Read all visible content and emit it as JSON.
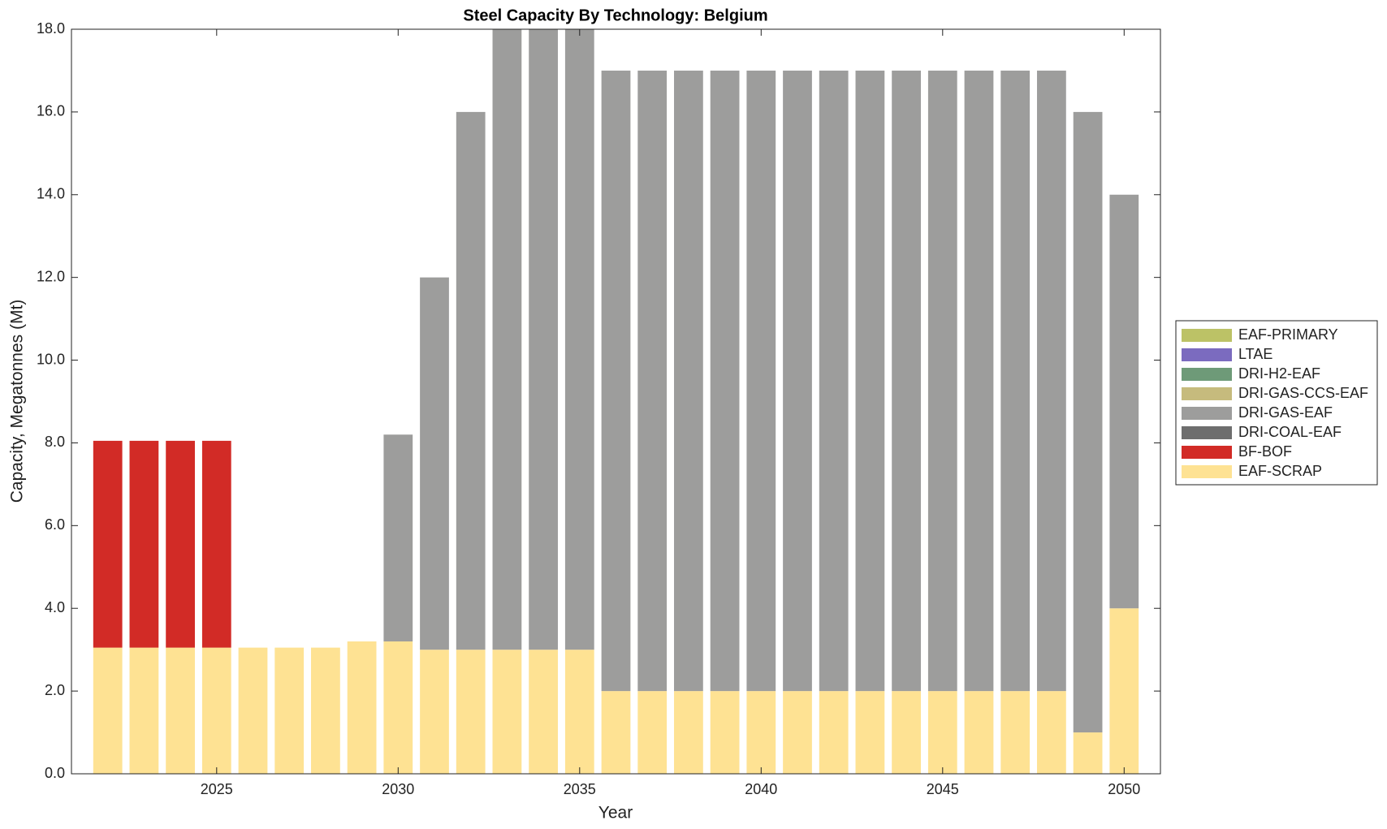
{
  "chart_data": {
    "type": "bar",
    "stacked": true,
    "title": "Steel Capacity By Technology: Belgium",
    "xlabel": "Year",
    "ylabel": "Capacity, Megatonnes (Mt)",
    "x": [
      2022,
      2023,
      2024,
      2025,
      2026,
      2027,
      2028,
      2029,
      2030,
      2031,
      2032,
      2033,
      2034,
      2035,
      2036,
      2037,
      2038,
      2039,
      2040,
      2041,
      2042,
      2043,
      2044,
      2045,
      2046,
      2047,
      2048,
      2049,
      2050
    ],
    "xlim": [
      2021,
      2051
    ],
    "xticks": [
      2025,
      2030,
      2035,
      2040,
      2045,
      2050
    ],
    "ylim": [
      0,
      18
    ],
    "yticks": [
      {
        "value": 0,
        "label": "0.0"
      },
      {
        "value": 2,
        "label": "2.0"
      },
      {
        "value": 4,
        "label": "4.0"
      },
      {
        "value": 6,
        "label": "6.0"
      },
      {
        "value": 8,
        "label": "8.0"
      },
      {
        "value": 10,
        "label": "10.0"
      },
      {
        "value": 12,
        "label": "12.0"
      },
      {
        "value": 14,
        "label": "14.0"
      },
      {
        "value": 16,
        "label": "16.0"
      },
      {
        "value": 18,
        "label": "18.0"
      }
    ],
    "legend": "right",
    "series": [
      {
        "name": "EAF-SCRAP",
        "color": "#fee293",
        "values": [
          3.05,
          3.05,
          3.05,
          3.05,
          3.05,
          3.05,
          3.05,
          3.2,
          3.2,
          3,
          3,
          3,
          3,
          3,
          2,
          2,
          2,
          2,
          2,
          2,
          2,
          2,
          2,
          2,
          2,
          2,
          2,
          1,
          4
        ]
      },
      {
        "name": "BF-BOF",
        "color": "#d22b26",
        "values": [
          5,
          5,
          5,
          5,
          0,
          0,
          0,
          0,
          0,
          0,
          0,
          0,
          0,
          0,
          0,
          0,
          0,
          0,
          0,
          0,
          0,
          0,
          0,
          0,
          0,
          0,
          0,
          0,
          0
        ]
      },
      {
        "name": "DRI-COAL-EAF",
        "color": "#6e6e6e",
        "values": [
          0,
          0,
          0,
          0,
          0,
          0,
          0,
          0,
          0,
          0,
          0,
          0,
          0,
          0,
          0,
          0,
          0,
          0,
          0,
          0,
          0,
          0,
          0,
          0,
          0,
          0,
          0,
          0,
          0
        ]
      },
      {
        "name": "DRI-GAS-EAF",
        "color": "#9d9d9c",
        "values": [
          0,
          0,
          0,
          0,
          0,
          0,
          0,
          0,
          5,
          9,
          13,
          15,
          15,
          15,
          15,
          15,
          15,
          15,
          15,
          15,
          15,
          15,
          15,
          15,
          15,
          15,
          15,
          15,
          10
        ]
      },
      {
        "name": "DRI-GAS-CCS-EAF",
        "color": "#c6bb7d",
        "values": [
          0,
          0,
          0,
          0,
          0,
          0,
          0,
          0,
          0,
          0,
          0,
          0,
          0,
          0,
          0,
          0,
          0,
          0,
          0,
          0,
          0,
          0,
          0,
          0,
          0,
          0,
          0,
          0,
          0
        ]
      },
      {
        "name": "DRI-H2-EAF",
        "color": "#6e9a78",
        "values": [
          0,
          0,
          0,
          0,
          0,
          0,
          0,
          0,
          0,
          0,
          0,
          0,
          0,
          0,
          0,
          0,
          0,
          0,
          0,
          0,
          0,
          0,
          0,
          0,
          0,
          0,
          0,
          0,
          0
        ]
      },
      {
        "name": "LTAE",
        "color": "#7b6bbf",
        "values": [
          0,
          0,
          0,
          0,
          0,
          0,
          0,
          0,
          0,
          0,
          0,
          0,
          0,
          0,
          0,
          0,
          0,
          0,
          0,
          0,
          0,
          0,
          0,
          0,
          0,
          0,
          0,
          0,
          0
        ]
      },
      {
        "name": "EAF-PRIMARY",
        "color": "#bcc266",
        "values": [
          0,
          0,
          0,
          0,
          0,
          0,
          0,
          0,
          0,
          0,
          0,
          0,
          0,
          0,
          0,
          0,
          0,
          0,
          0,
          0,
          0,
          0,
          0,
          0,
          0,
          0,
          0,
          0,
          0
        ]
      }
    ]
  }
}
